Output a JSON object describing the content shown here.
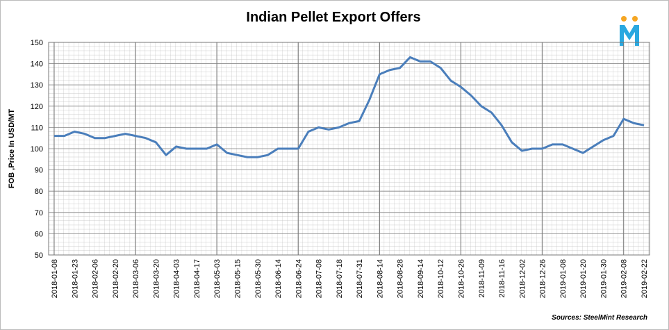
{
  "chart_data": {
    "type": "line",
    "title": "Indian Pellet Export Offers",
    "y_label": "FOB ,Price In USD/MT",
    "source": "Sources: SteelMint Research",
    "categories": [
      "2018-01-08",
      null,
      "2018-01-23",
      null,
      "2018-02-06",
      null,
      "2018-02-20",
      null,
      "2018-03-06",
      null,
      "2018-03-20",
      null,
      "2018-04-03",
      null,
      "2018-04-17",
      null,
      "2018-05-03",
      null,
      "2018-05-15",
      null,
      "2018-05-30",
      null,
      "2018-06-14",
      null,
      "2018-06-24",
      null,
      "2018-07-08",
      null,
      "2018-07-18",
      null,
      "2018-07-31",
      null,
      "2018-08-14",
      null,
      "2018-08-28",
      null,
      "2018-09-14",
      null,
      "2018-10-12",
      null,
      "2018-10-26",
      null,
      "2018-11-09",
      null,
      "2018-11-16",
      null,
      "2018-12-02",
      null,
      "2018-12-26",
      null,
      "2019-01-08",
      null,
      "2019-01-20",
      null,
      "2019-01-30",
      null,
      "2019-02-08",
      null,
      "2019-02-22"
    ],
    "series": [
      {
        "name": "FOB Price",
        "color": "#4a7ebb",
        "values": [
          106,
          106,
          108,
          107,
          105,
          105,
          106,
          107,
          106,
          105,
          103,
          97,
          101,
          100,
          100,
          100,
          102,
          98,
          97,
          96,
          96,
          97,
          100,
          100,
          100,
          108,
          110,
          109,
          110,
          112,
          113,
          123,
          135,
          137,
          138,
          143,
          141,
          141,
          138,
          132,
          129,
          125,
          120,
          117,
          111,
          103,
          99,
          100,
          100,
          102,
          102,
          100,
          98,
          101,
          104,
          106,
          114,
          112,
          111
        ]
      }
    ],
    "ylim": [
      50,
      150
    ],
    "yticks": [
      50,
      60,
      70,
      80,
      90,
      100,
      110,
      120,
      130,
      140,
      150
    ],
    "grid": true
  }
}
